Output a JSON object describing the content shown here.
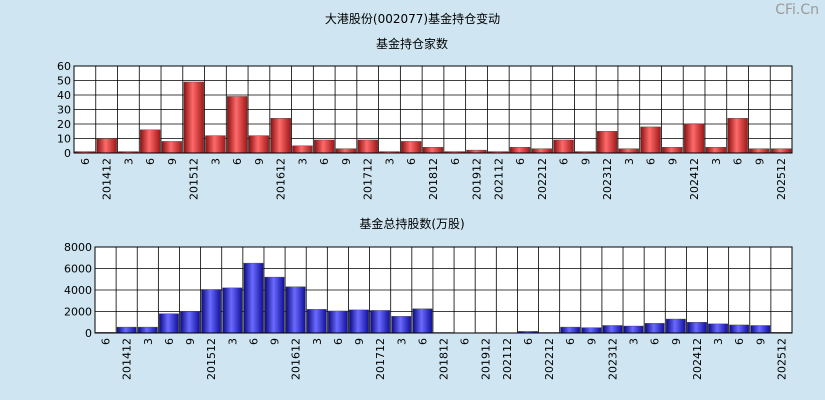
{
  "page": {
    "title": "大港股份(002077)基金持仓变动",
    "watermark": "CFi.Cn"
  },
  "chart_data": [
    {
      "type": "bar",
      "title": "基金持仓家数",
      "ylim": [
        0,
        60
      ],
      "yticks": [
        0,
        10,
        20,
        30,
        40,
        50,
        60
      ],
      "grid": true,
      "bar_color": "#e43a3a",
      "categories": [
        "6",
        "201412",
        "3",
        "6",
        "9",
        "201512",
        "3",
        "6",
        "9",
        "201612",
        "3",
        "6",
        "9",
        "201712",
        "3",
        "6",
        "201812",
        "6",
        "201912",
        "202112",
        "6",
        "202212",
        "6",
        "9",
        "202312",
        "3",
        "6",
        "9",
        "202412",
        "3",
        "6",
        "9",
        "202512"
      ],
      "values": [
        1,
        10,
        1,
        16,
        8,
        49,
        12,
        39,
        12,
        24,
        5,
        9,
        3,
        9,
        1,
        8,
        4,
        1,
        2,
        1,
        4,
        3,
        9,
        1,
        15,
        3,
        18,
        4,
        20,
        4,
        24,
        3,
        3
      ]
    },
    {
      "type": "bar",
      "title": "基金总持股数(万股)",
      "ylim": [
        0,
        8000
      ],
      "yticks": [
        0,
        2000,
        4000,
        6000,
        8000
      ],
      "grid": true,
      "bar_color": "#2020d8",
      "categories": [
        "6",
        "201412",
        "3",
        "6",
        "9",
        "201512",
        "3",
        "6",
        "9",
        "201612",
        "3",
        "6",
        "9",
        "201712",
        "3",
        "6",
        "201812",
        "6",
        "201912",
        "202112",
        "6",
        "202212",
        "6",
        "9",
        "202312",
        "3",
        "6",
        "9",
        "202412",
        "3",
        "6",
        "9",
        "202512"
      ],
      "values": [
        60,
        550,
        550,
        1800,
        2000,
        4050,
        4200,
        6500,
        5200,
        4300,
        2200,
        2050,
        2150,
        2100,
        1550,
        2250,
        50,
        30,
        40,
        30,
        150,
        50,
        550,
        500,
        700,
        650,
        900,
        1300,
        1000,
        850,
        750,
        700,
        60
      ]
    }
  ]
}
